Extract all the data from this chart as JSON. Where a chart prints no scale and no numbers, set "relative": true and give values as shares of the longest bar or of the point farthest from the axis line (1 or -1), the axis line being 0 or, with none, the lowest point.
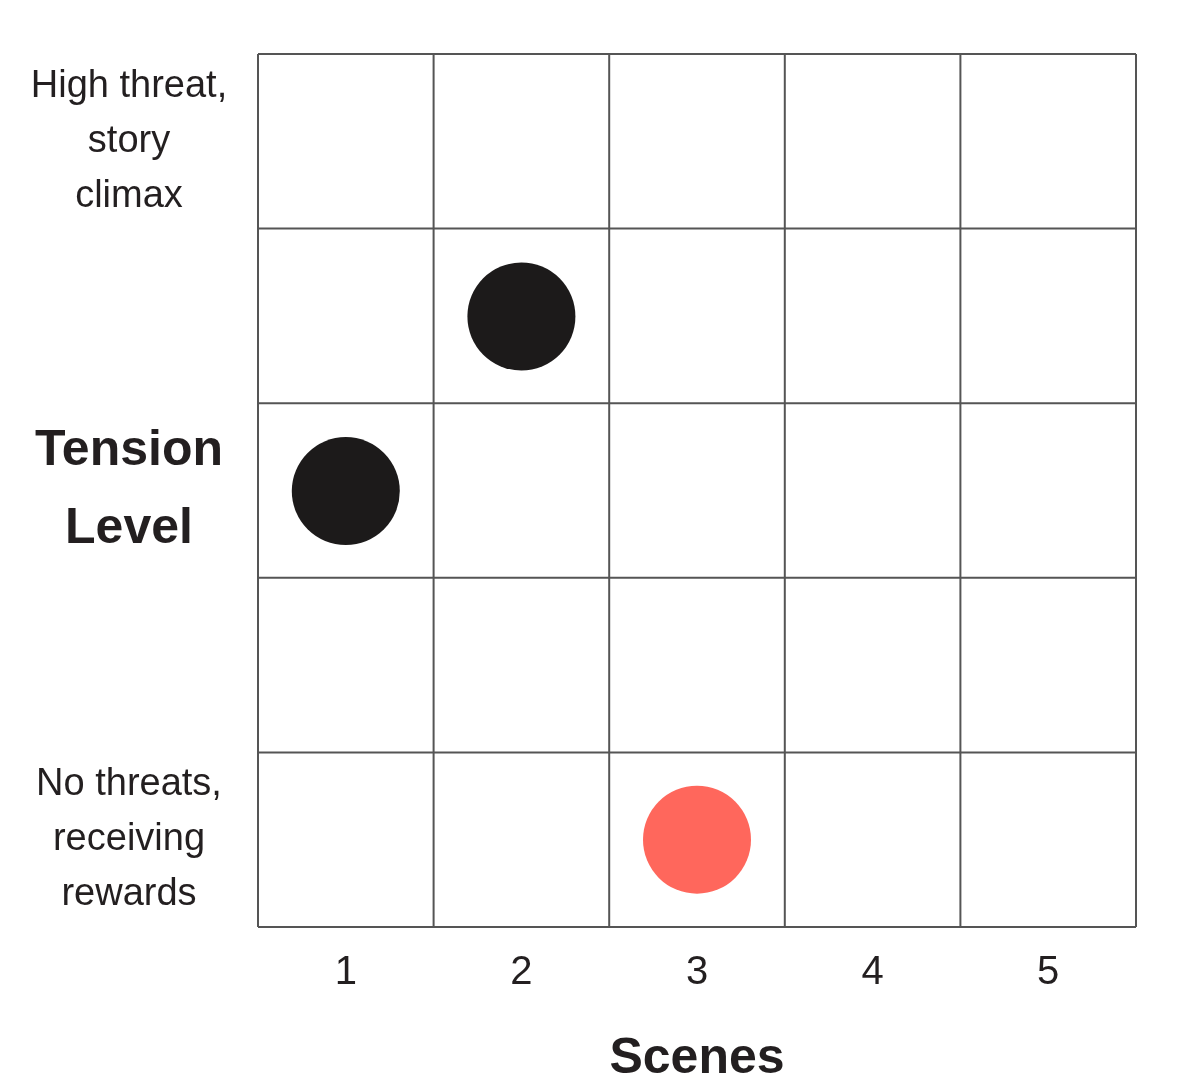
{
  "chart_data": {
    "type": "scatter",
    "xlabel": "Scenes",
    "ylabel": "Tension Level",
    "annotations": [
      "High threat, story climax",
      "No threats, receiving rewards"
    ],
    "x": [
      1,
      2,
      3
    ],
    "values": [
      0.714,
      1,
      0.143
    ],
    "relative": true,
    "colors": [
      "#1c1a1a",
      "#1c1a1a",
      "#ff675c"
    ],
    "xlim": [
      0.5,
      5.5
    ],
    "xticks": [
      1,
      2,
      3,
      4,
      5
    ],
    "grid": true,
    "marker": "circle",
    "legend": false
  }
}
